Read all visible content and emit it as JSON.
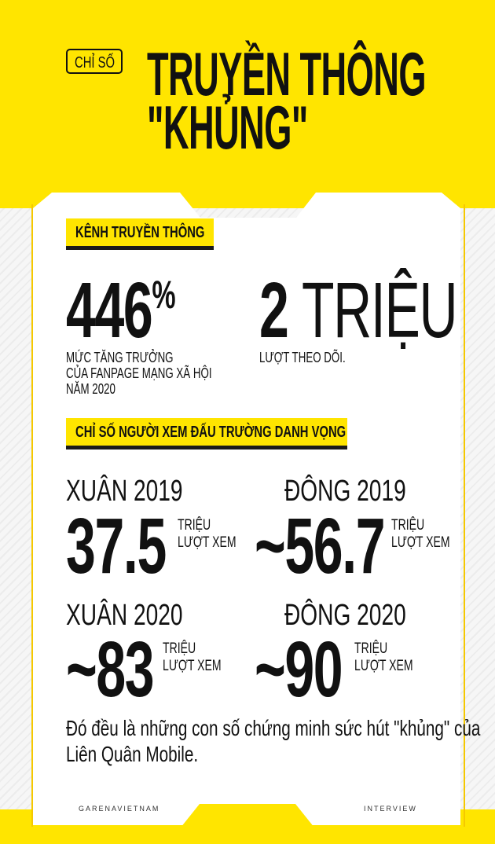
{
  "colors": {
    "accent": "#ffe500",
    "text": "#111111"
  },
  "header": {
    "tag": "CHỈ SỐ",
    "title_line1": "TRUYỀN THÔNG",
    "title_line2": "\"KHỦNG\""
  },
  "section1": {
    "label": "KÊNH TRUYỀN THÔNG",
    "stat1": {
      "value": "446",
      "suffix": "%",
      "caption": [
        "MỨC TĂNG TRƯỞNG",
        "CỦA FANPAGE MẠNG XÃ HỘI",
        "NĂM 2020"
      ]
    },
    "stat2": {
      "value": "2",
      "unit": "TRIỆU",
      "caption": "LƯỢT THEO DÕI."
    }
  },
  "section2": {
    "label": "CHỈ SỐ NGƯỜI XEM ĐẤU TRƯỜNG DANH VỌNG",
    "items": [
      {
        "season": "XUÂN 2019",
        "value": "37.5",
        "unit1": "TRIỆU",
        "unit2": "LƯỢT XEM"
      },
      {
        "season": "ĐÔNG 2019",
        "value": "~56.7",
        "unit1": "TRIỆU",
        "unit2": "LƯỢT XEM"
      },
      {
        "season": "XUÂN 2020",
        "value": "~83",
        "unit1": "TRIỆU",
        "unit2": "LƯỢT XEM"
      },
      {
        "season": "ĐÔNG 2020",
        "value": "~90",
        "unit1": "TRIỆU",
        "unit2": "LƯỢT XEM"
      }
    ]
  },
  "conclusion": [
    "Đó đều là những con số chứng minh sức hút \"khủng\" của",
    "Liên Quân Mobile."
  ],
  "footer": {
    "left": "GARENAVIETNAM",
    "right": "INTERVIEW"
  }
}
